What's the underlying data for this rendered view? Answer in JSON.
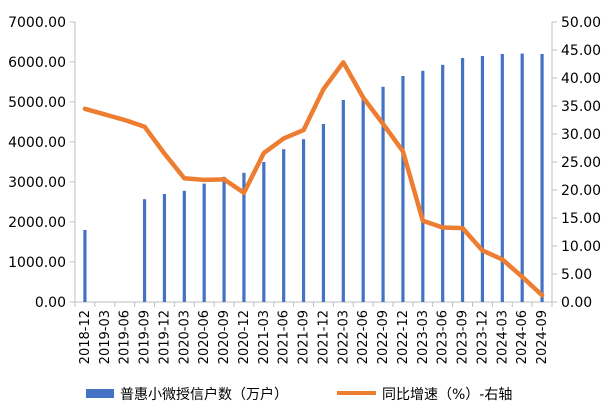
{
  "chart_data": {
    "type": "bar+line",
    "categories": [
      "2018-12",
      "2019-03",
      "2019-06",
      "2019-09",
      "2019-12",
      "2020-03",
      "2020-06",
      "2020-09",
      "2020-12",
      "2021-03",
      "2021-06",
      "2021-09",
      "2021-12",
      "2022-03",
      "2022-06",
      "2022-09",
      "2022-12",
      "2023-03",
      "2023-06",
      "2023-09",
      "2023-12",
      "2024-03",
      "2024-06",
      "2024-09"
    ],
    "series": [
      {
        "name": "普惠小微授信户数（万户）",
        "type": "bar",
        "axis": "left",
        "color": "#4472C4",
        "values": [
          1800,
          null,
          null,
          2570,
          2700,
          2780,
          2960,
          3130,
          3230,
          3500,
          3820,
          4070,
          4450,
          5050,
          5150,
          5380,
          5650,
          5780,
          5930,
          6100,
          6150,
          6200,
          6210,
          6200
        ]
      },
      {
        "name": "同比增速（%）-右轴",
        "type": "line",
        "axis": "right",
        "color": "#ED7D31",
        "values": [
          34.5,
          33.5,
          32.5,
          31.3,
          26.5,
          22.1,
          21.8,
          21.9,
          19.5,
          26.6,
          29.2,
          30.7,
          38.0,
          42.8,
          36.5,
          31.8,
          26.9,
          14.5,
          13.3,
          13.2,
          9.2,
          7.6,
          4.5,
          1.2
        ]
      }
    ],
    "y_left": {
      "lim": [
        0,
        7000
      ],
      "ticks": [
        "0.00",
        "1000.00",
        "2000.00",
        "3000.00",
        "4000.00",
        "5000.00",
        "6000.00",
        "7000.00"
      ]
    },
    "y_right": {
      "lim": [
        0,
        50
      ],
      "ticks": [
        "0.00",
        "5.00",
        "10.00",
        "15.00",
        "20.00",
        "25.00",
        "30.00",
        "35.00",
        "40.00",
        "45.00",
        "50.00"
      ]
    },
    "grid": false,
    "legend": "bottom"
  }
}
